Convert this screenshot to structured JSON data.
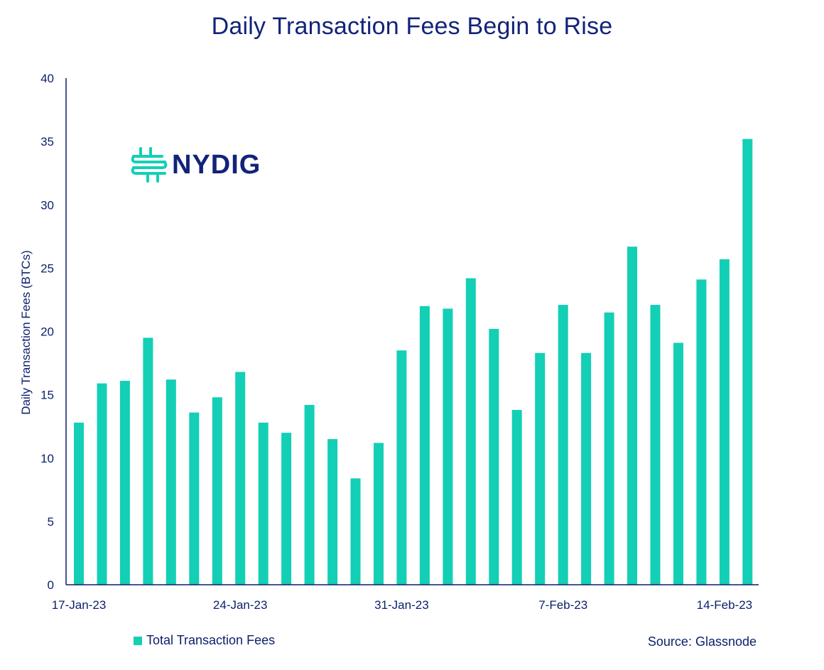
{
  "chart_data": {
    "type": "bar",
    "title": "Daily Transaction Fees Begin to Rise",
    "ylabel": "Daily Transaction Fees (BTCs)",
    "xlabel": "",
    "ylim": [
      0,
      40
    ],
    "yticks": [
      0,
      5,
      10,
      15,
      20,
      25,
      30,
      35,
      40
    ],
    "grid": false,
    "legend_position": "bottom-left",
    "x_tick_labels": [
      {
        "index": 0,
        "label": "17-Jan-23"
      },
      {
        "index": 7,
        "label": "24-Jan-23"
      },
      {
        "index": 14,
        "label": "31-Jan-23"
      },
      {
        "index": 21,
        "label": "7-Feb-23"
      },
      {
        "index": 28,
        "label": "14-Feb-23"
      }
    ],
    "categories": [
      "2023-01-17",
      "2023-01-18",
      "2023-01-19",
      "2023-01-20",
      "2023-01-21",
      "2023-01-22",
      "2023-01-23",
      "2023-01-24",
      "2023-01-25",
      "2023-01-26",
      "2023-01-27",
      "2023-01-28",
      "2023-01-29",
      "2023-01-30",
      "2023-01-31",
      "2023-02-01",
      "2023-02-02",
      "2023-02-03",
      "2023-02-04",
      "2023-02-05",
      "2023-02-06",
      "2023-02-07",
      "2023-02-08",
      "2023-02-09",
      "2023-02-10",
      "2023-02-11",
      "2023-02-12",
      "2023-02-13",
      "2023-02-14",
      "2023-02-15"
    ],
    "series": [
      {
        "name": "Total Transaction Fees",
        "color": "#13cfb5",
        "values": [
          12.8,
          15.9,
          16.1,
          19.5,
          16.2,
          13.6,
          14.8,
          16.8,
          12.8,
          12.0,
          14.2,
          11.5,
          8.4,
          11.2,
          18.5,
          22.0,
          21.8,
          24.2,
          20.2,
          13.8,
          18.3,
          22.1,
          18.3,
          21.5,
          26.7,
          22.1,
          19.1,
          24.1,
          25.7,
          35.2
        ]
      }
    ]
  },
  "logo": {
    "text": "NYDIG",
    "icon": "nydig-mark-icon"
  },
  "legend": {
    "label": "Total Transaction Fees"
  },
  "source": {
    "text": "Source: Glassnode"
  },
  "colors": {
    "bar": "#13cfb5",
    "text": "#0b1f6b",
    "title": "#12237a"
  }
}
